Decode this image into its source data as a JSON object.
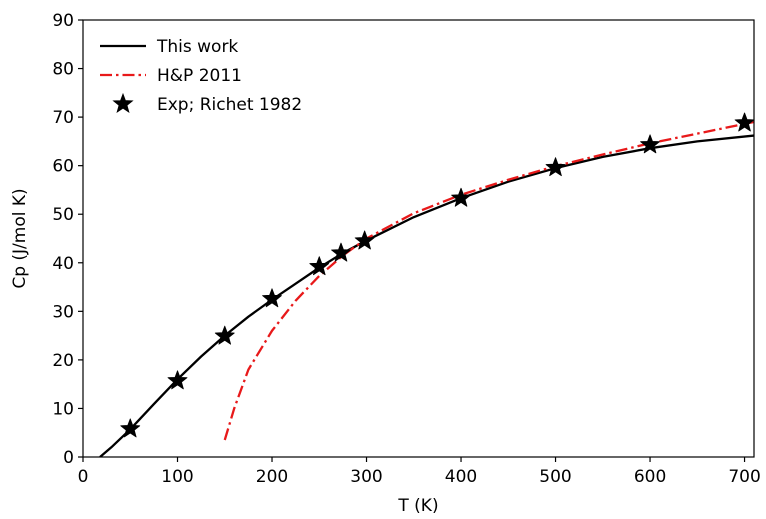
{
  "chart_data": {
    "type": "line",
    "title": "",
    "xlabel": "T  (K)",
    "ylabel": "Cp  (J/mol K)",
    "xlim": [
      0,
      710
    ],
    "ylim": [
      0,
      90
    ],
    "xticks": [
      0,
      100,
      200,
      300,
      400,
      500,
      600,
      700
    ],
    "yticks": [
      0,
      10,
      20,
      30,
      40,
      50,
      60,
      70,
      80,
      90
    ],
    "grid": false,
    "legend_position": "top-left",
    "series": [
      {
        "name": "This work",
        "style": "solid",
        "color": "#000000",
        "x": [
          18,
          30,
          50,
          75,
          100,
          125,
          150,
          175,
          200,
          225,
          250,
          275,
          300,
          350,
          400,
          450,
          500,
          550,
          600,
          650,
          710
        ],
        "y": [
          0.0,
          2.0,
          5.7,
          10.9,
          16.0,
          20.7,
          25.0,
          28.9,
          32.4,
          35.7,
          39.0,
          42.0,
          44.6,
          49.4,
          53.3,
          56.7,
          59.5,
          61.8,
          63.6,
          65.0,
          66.2
        ]
      },
      {
        "name": "H&P 2011",
        "style": "dashdot",
        "color": "#e8191a",
        "x": [
          150,
          160,
          175,
          200,
          225,
          250,
          275,
          300,
          350,
          400,
          450,
          500,
          550,
          600,
          650,
          710
        ],
        "y": [
          3.5,
          10.0,
          18.0,
          26.0,
          32.2,
          37.3,
          41.5,
          45.0,
          50.2,
          54.0,
          57.1,
          59.9,
          62.3,
          64.6,
          66.6,
          69.0
        ]
      },
      {
        "name": "Exp; Richet 1982",
        "style": "marker-star",
        "color": "#000000",
        "x": [
          50,
          100,
          150,
          200,
          250,
          273,
          298,
          400,
          500,
          600,
          700
        ],
        "y": [
          5.8,
          15.7,
          24.9,
          32.6,
          39.2,
          42.0,
          44.5,
          53.3,
          59.6,
          64.3,
          68.8
        ]
      }
    ]
  }
}
